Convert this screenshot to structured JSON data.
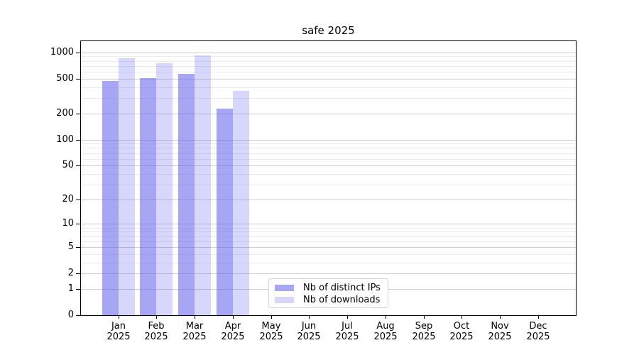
{
  "chart_data": {
    "type": "bar",
    "title": "safe 2025",
    "categories": [
      "Jan",
      "Feb",
      "Mar",
      "Apr",
      "May",
      "Jun",
      "Jul",
      "Aug",
      "Sep",
      "Oct",
      "Nov",
      "Dec"
    ],
    "x_year_label": "2025",
    "series": [
      {
        "name": "Nb of distinct IPs",
        "color": "rgba(102,102,238,0.58)",
        "values": [
          470,
          505,
          565,
          227,
          null,
          null,
          null,
          null,
          null,
          null,
          null,
          null
        ]
      },
      {
        "name": "Nb of downloads",
        "color": "rgba(102,102,238,0.26)",
        "values": [
          855,
          755,
          925,
          360,
          null,
          null,
          null,
          null,
          null,
          null,
          null,
          null
        ]
      }
    ],
    "xlabel": "",
    "ylabel": "",
    "yscale": "symlog (position proportional to ln(1+v))",
    "ylim": [
      0,
      1350
    ],
    "y_major_ticks": [
      0,
      1,
      2,
      5,
      10,
      20,
      50,
      100,
      200,
      500,
      1000
    ],
    "y_minor_ticks": [
      3,
      4,
      6,
      7,
      8,
      9,
      30,
      40,
      60,
      70,
      80,
      90,
      300,
      400,
      600,
      700,
      800,
      900
    ],
    "grid": "horizontal major and minor gridlines on",
    "legend_position": "inside bottom-center"
  },
  "colors": {
    "bar_base": "#6666ee",
    "distinct_ips_fill": "rgba(102,102,238,0.58)",
    "downloads_fill": "rgba(102,102,238,0.26)",
    "grid_major": "#cdcdcd",
    "grid_minor": "#ebebeb",
    "axis_line": "#000000",
    "text": "#000000",
    "background": "#ffffff",
    "legend_border": "#d2d2d2"
  }
}
